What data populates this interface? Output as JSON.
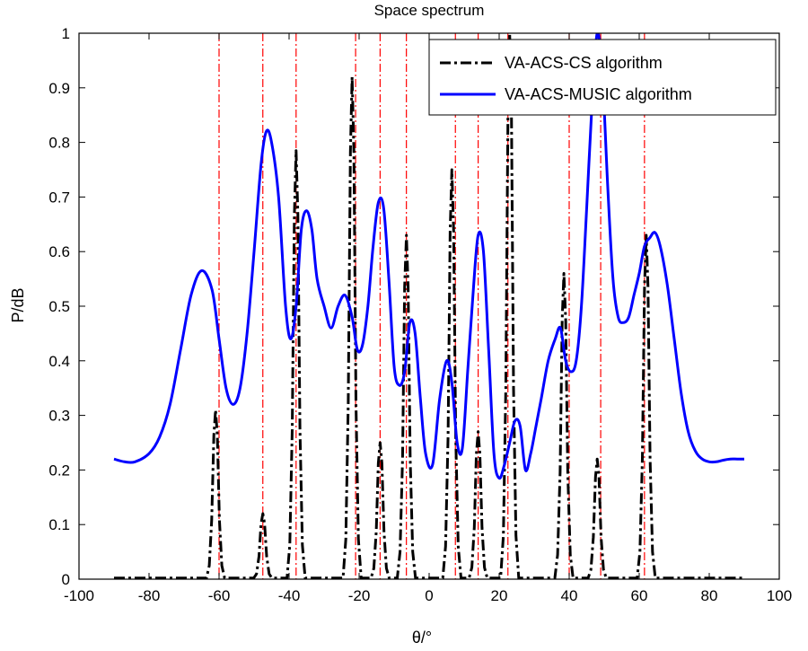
{
  "chart_data": {
    "type": "line",
    "title": "Space spectrum",
    "xlabel": "θ/°",
    "ylabel": "P/dB",
    "xlim": [
      -100,
      100
    ],
    "ylim": [
      0,
      1
    ],
    "xticks": [
      -100,
      -80,
      -60,
      -40,
      -20,
      0,
      20,
      40,
      60,
      80,
      100
    ],
    "yticks": [
      0,
      0.1,
      0.2,
      0.3,
      0.4,
      0.5,
      0.6,
      0.7,
      0.8,
      0.9,
      1
    ],
    "xtick_labels": [
      "-100",
      "-80",
      "-60",
      "-40",
      "-20",
      "0",
      "20",
      "40",
      "60",
      "80",
      "100"
    ],
    "ytick_labels": [
      "0",
      "0.1",
      "0.2",
      "0.3",
      "0.4",
      "0.5",
      "0.6",
      "0.7",
      "0.8",
      "0.9",
      "1"
    ],
    "grid": false,
    "legend_position": "top-right",
    "true_angles": [
      -60,
      -47.5,
      -38,
      -21,
      -14,
      -6.5,
      7.5,
      14,
      22.5,
      40,
      49,
      61.5
    ],
    "series": [
      {
        "name": "VA-ACS-CS algorithm",
        "style": "dash-dot",
        "color": "#000000",
        "peaks": [
          {
            "x": -61,
            "y": 0.31
          },
          {
            "x": -47.5,
            "y": 0.12
          },
          {
            "x": -38,
            "y": 0.785
          },
          {
            "x": -22,
            "y": 0.92
          },
          {
            "x": -14,
            "y": 0.25
          },
          {
            "x": -6.5,
            "y": 0.63
          },
          {
            "x": 6.5,
            "y": 0.75
          },
          {
            "x": 14,
            "y": 0.27
          },
          {
            "x": 23,
            "y": 1.0
          },
          {
            "x": 38.5,
            "y": 0.56
          },
          {
            "x": 48,
            "y": 0.22
          },
          {
            "x": 62,
            "y": 0.63
          }
        ]
      },
      {
        "name": "VA-ACS-MUSIC algorithm",
        "style": "solid",
        "color": "#0000ff",
        "x": [
          -90,
          -87,
          -84,
          -80,
          -77,
          -74,
          -71,
          -68,
          -65,
          -62,
          -60,
          -58,
          -56,
          -54,
          -52,
          -50,
          -48,
          -46.5,
          -45,
          -43,
          -41,
          -39.5,
          -38,
          -36.5,
          -35,
          -33.5,
          -32,
          -30,
          -28,
          -26,
          -24,
          -22,
          -20.5,
          -19,
          -17.5,
          -16,
          -14.5,
          -13,
          -11.5,
          -10,
          -8.5,
          -7,
          -5.5,
          -4,
          -2.5,
          -1,
          1,
          3,
          5,
          6.5,
          8,
          9.5,
          11,
          12.5,
          14,
          15.5,
          17,
          18.5,
          20,
          21.5,
          23,
          24.5,
          26,
          27.5,
          29,
          30.5,
          32,
          34,
          36,
          37.5,
          39,
          40.5,
          42,
          43.5,
          45,
          46.5,
          48,
          49.5,
          51,
          52.5,
          54,
          55.5,
          57,
          58.5,
          60,
          61.5,
          63,
          64.5,
          66,
          68,
          70,
          72,
          74,
          76,
          78,
          80,
          82,
          84,
          86,
          88,
          90
        ],
        "y": [
          0.22,
          0.215,
          0.215,
          0.23,
          0.26,
          0.32,
          0.42,
          0.52,
          0.565,
          0.53,
          0.44,
          0.35,
          0.32,
          0.35,
          0.45,
          0.6,
          0.76,
          0.82,
          0.8,
          0.7,
          0.5,
          0.44,
          0.5,
          0.64,
          0.675,
          0.64,
          0.55,
          0.5,
          0.46,
          0.5,
          0.52,
          0.48,
          0.42,
          0.43,
          0.5,
          0.61,
          0.69,
          0.68,
          0.55,
          0.39,
          0.355,
          0.38,
          0.47,
          0.45,
          0.33,
          0.23,
          0.21,
          0.33,
          0.4,
          0.36,
          0.25,
          0.24,
          0.38,
          0.52,
          0.63,
          0.6,
          0.42,
          0.23,
          0.185,
          0.21,
          0.25,
          0.29,
          0.28,
          0.2,
          0.23,
          0.28,
          0.33,
          0.4,
          0.44,
          0.46,
          0.4,
          0.38,
          0.4,
          0.5,
          0.68,
          0.87,
          1.0,
          0.92,
          0.72,
          0.55,
          0.48,
          0.47,
          0.48,
          0.52,
          0.56,
          0.61,
          0.625,
          0.635,
          0.61,
          0.54,
          0.44,
          0.34,
          0.27,
          0.235,
          0.22,
          0.215,
          0.215,
          0.218,
          0.22,
          0.22,
          0.22
        ]
      }
    ]
  }
}
